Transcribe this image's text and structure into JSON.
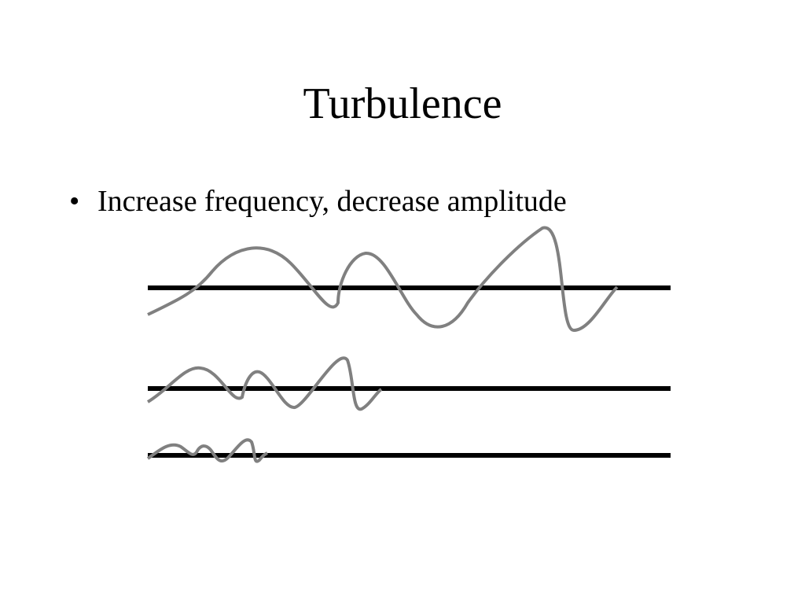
{
  "title": "Turbulence",
  "bullets": [
    "Increase frequency, decrease amplitude"
  ]
}
